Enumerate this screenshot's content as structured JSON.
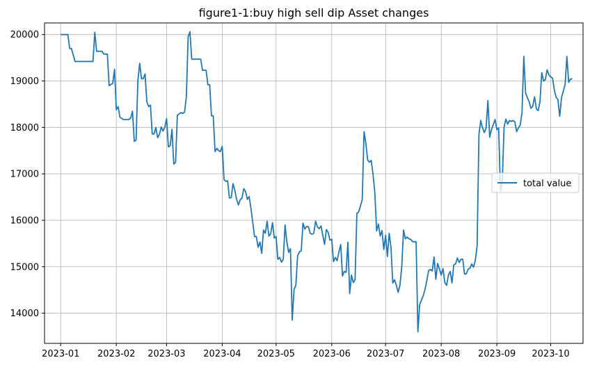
{
  "chart_data": {
    "type": "line",
    "title": "figure1-1:buy high sell dip Asset changes",
    "xlabel": "",
    "ylabel": "",
    "grid": true,
    "legend_position": "center-right",
    "x_tick_labels": [
      "2023-01",
      "2023-02",
      "2023-03",
      "2023-04",
      "2023-05",
      "2023-06",
      "2023-07",
      "2023-08",
      "2023-09",
      "2023-10"
    ],
    "y_tick_labels": [
      "14000",
      "15000",
      "16000",
      "17000",
      "18000",
      "19000",
      "20000"
    ],
    "ylim": [
      13350,
      20250
    ],
    "xlim": [
      "2022-12-23",
      "2023-10-19"
    ],
    "series": [
      {
        "name": "total value",
        "color": "#1f77b4",
        "points": [
          [
            "2023-01-01",
            20000
          ],
          [
            "2023-01-04",
            20000
          ],
          [
            "2023-01-05",
            20000
          ],
          [
            "2023-01-06",
            19700
          ],
          [
            "2023-01-07",
            19700
          ],
          [
            "2023-01-09",
            19420
          ],
          [
            "2023-01-13",
            19420
          ],
          [
            "2023-01-19",
            19420
          ],
          [
            "2023-01-20",
            20050
          ],
          [
            "2023-01-21",
            19640
          ],
          [
            "2023-01-24",
            19640
          ],
          [
            "2023-01-25",
            19580
          ],
          [
            "2023-01-27",
            19580
          ],
          [
            "2023-01-28",
            18900
          ],
          [
            "2023-01-30",
            18950
          ],
          [
            "2023-01-31",
            19250
          ],
          [
            "2023-02-01",
            18380
          ],
          [
            "2023-02-02",
            18450
          ],
          [
            "2023-02-03",
            18220
          ],
          [
            "2023-02-05",
            18170
          ],
          [
            "2023-02-08",
            18170
          ],
          [
            "2023-02-09",
            18200
          ],
          [
            "2023-02-10",
            18350
          ],
          [
            "2023-02-11",
            17700
          ],
          [
            "2023-02-12",
            17730
          ],
          [
            "2023-02-13",
            19000
          ],
          [
            "2023-02-14",
            19380
          ],
          [
            "2023-02-15",
            19050
          ],
          [
            "2023-02-16",
            19050
          ],
          [
            "2023-02-17",
            19150
          ],
          [
            "2023-02-18",
            18550
          ],
          [
            "2023-02-19",
            18450
          ],
          [
            "2023-02-20",
            18480
          ],
          [
            "2023-02-21",
            17860
          ],
          [
            "2023-02-22",
            17860
          ],
          [
            "2023-02-23",
            18000
          ],
          [
            "2023-02-24",
            17780
          ],
          [
            "2023-02-25",
            17850
          ],
          [
            "2023-02-26",
            18010
          ],
          [
            "2023-02-27",
            17920
          ],
          [
            "2023-02-28",
            18000
          ],
          [
            "2023-03-01",
            18190
          ],
          [
            "2023-03-02",
            17580
          ],
          [
            "2023-03-03",
            17610
          ],
          [
            "2023-03-04",
            17960
          ],
          [
            "2023-03-05",
            17210
          ],
          [
            "2023-03-06",
            17250
          ],
          [
            "2023-03-07",
            18260
          ],
          [
            "2023-03-09",
            18320
          ],
          [
            "2023-03-10",
            18300
          ],
          [
            "2023-03-11",
            18330
          ],
          [
            "2023-03-12",
            18650
          ],
          [
            "2023-03-13",
            19950
          ],
          [
            "2023-03-14",
            20060
          ],
          [
            "2023-03-15",
            19470
          ],
          [
            "2023-03-20",
            19470
          ],
          [
            "2023-03-21",
            19230
          ],
          [
            "2023-03-23",
            19230
          ],
          [
            "2023-03-24",
            18920
          ],
          [
            "2023-03-25",
            18920
          ],
          [
            "2023-03-26",
            18250
          ],
          [
            "2023-03-27",
            18250
          ],
          [
            "2023-03-28",
            17480
          ],
          [
            "2023-03-29",
            17550
          ],
          [
            "2023-03-30",
            17500
          ],
          [
            "2023-03-31",
            17480
          ],
          [
            "2023-04-01",
            17590
          ],
          [
            "2023-04-02",
            16880
          ],
          [
            "2023-04-03",
            16840
          ],
          [
            "2023-04-04",
            16850
          ],
          [
            "2023-04-05",
            16480
          ],
          [
            "2023-04-06",
            16490
          ],
          [
            "2023-04-07",
            16790
          ],
          [
            "2023-04-08",
            16650
          ],
          [
            "2023-04-09",
            16450
          ],
          [
            "2023-04-10",
            16330
          ],
          [
            "2023-04-11",
            16440
          ],
          [
            "2023-04-12",
            16480
          ],
          [
            "2023-04-13",
            16680
          ],
          [
            "2023-04-14",
            16620
          ],
          [
            "2023-04-15",
            16450
          ],
          [
            "2023-04-16",
            16510
          ],
          [
            "2023-04-17",
            16260
          ],
          [
            "2023-04-18",
            15950
          ],
          [
            "2023-04-19",
            15650
          ],
          [
            "2023-04-20",
            15650
          ],
          [
            "2023-04-21",
            15420
          ],
          [
            "2023-04-22",
            15530
          ],
          [
            "2023-04-23",
            15290
          ],
          [
            "2023-04-24",
            15790
          ],
          [
            "2023-04-25",
            15720
          ],
          [
            "2023-04-26",
            15980
          ],
          [
            "2023-04-27",
            15660
          ],
          [
            "2023-04-28",
            15710
          ],
          [
            "2023-04-29",
            15950
          ],
          [
            "2023-04-30",
            15620
          ],
          [
            "2023-05-01",
            15650
          ],
          [
            "2023-05-02",
            15160
          ],
          [
            "2023-05-03",
            15200
          ],
          [
            "2023-05-04",
            15100
          ],
          [
            "2023-05-05",
            15160
          ],
          [
            "2023-05-06",
            15900
          ],
          [
            "2023-05-07",
            15530
          ],
          [
            "2023-05-08",
            15310
          ],
          [
            "2023-05-09",
            15390
          ],
          [
            "2023-05-10",
            13850
          ],
          [
            "2023-05-11",
            14510
          ],
          [
            "2023-05-12",
            14600
          ],
          [
            "2023-05-13",
            15240
          ],
          [
            "2023-05-14",
            15320
          ],
          [
            "2023-05-15",
            15340
          ],
          [
            "2023-05-16",
            15940
          ],
          [
            "2023-05-17",
            15810
          ],
          [
            "2023-05-18",
            15870
          ],
          [
            "2023-05-19",
            15860
          ],
          [
            "2023-05-20",
            15720
          ],
          [
            "2023-05-21",
            15700
          ],
          [
            "2023-05-22",
            15720
          ],
          [
            "2023-05-23",
            15980
          ],
          [
            "2023-05-24",
            15860
          ],
          [
            "2023-05-25",
            15820
          ],
          [
            "2023-05-26",
            15880
          ],
          [
            "2023-05-27",
            15680
          ],
          [
            "2023-05-28",
            15480
          ],
          [
            "2023-05-29",
            15800
          ],
          [
            "2023-05-30",
            15740
          ],
          [
            "2023-05-31",
            15570
          ],
          [
            "2023-06-01",
            15590
          ],
          [
            "2023-06-02",
            15110
          ],
          [
            "2023-06-03",
            15200
          ],
          [
            "2023-06-04",
            15130
          ],
          [
            "2023-06-05",
            15320
          ],
          [
            "2023-06-06",
            15480
          ],
          [
            "2023-06-07",
            14800
          ],
          [
            "2023-06-08",
            14900
          ],
          [
            "2023-06-09",
            14880
          ],
          [
            "2023-06-10",
            15530
          ],
          [
            "2023-06-11",
            14420
          ],
          [
            "2023-06-12",
            14820
          ],
          [
            "2023-06-13",
            14660
          ],
          [
            "2023-06-14",
            14720
          ],
          [
            "2023-06-15",
            16150
          ],
          [
            "2023-06-16",
            16180
          ],
          [
            "2023-06-17",
            16310
          ],
          [
            "2023-06-18",
            16450
          ],
          [
            "2023-06-19",
            17910
          ],
          [
            "2023-06-20",
            17660
          ],
          [
            "2023-06-21",
            17300
          ],
          [
            "2023-06-22",
            17250
          ],
          [
            "2023-06-23",
            17290
          ],
          [
            "2023-06-24",
            16990
          ],
          [
            "2023-06-25",
            16600
          ],
          [
            "2023-06-26",
            15770
          ],
          [
            "2023-06-27",
            15920
          ],
          [
            "2023-06-28",
            15660
          ],
          [
            "2023-06-29",
            15780
          ],
          [
            "2023-06-30",
            15370
          ],
          [
            "2023-07-01",
            15680
          ],
          [
            "2023-07-02",
            15220
          ],
          [
            "2023-07-03",
            15720
          ],
          [
            "2023-07-04",
            15420
          ],
          [
            "2023-07-05",
            14650
          ],
          [
            "2023-07-06",
            14720
          ],
          [
            "2023-07-07",
            14600
          ],
          [
            "2023-07-08",
            14450
          ],
          [
            "2023-07-09",
            14600
          ],
          [
            "2023-07-10",
            15000
          ],
          [
            "2023-07-11",
            15790
          ],
          [
            "2023-07-12",
            15600
          ],
          [
            "2023-07-13",
            15640
          ],
          [
            "2023-07-14",
            15600
          ],
          [
            "2023-07-15",
            15590
          ],
          [
            "2023-07-16",
            15540
          ],
          [
            "2023-07-18",
            15540
          ],
          [
            "2023-07-19",
            13600
          ],
          [
            "2023-07-20",
            14190
          ],
          [
            "2023-07-21",
            14280
          ],
          [
            "2023-07-22",
            14380
          ],
          [
            "2023-07-23",
            14520
          ],
          [
            "2023-07-24",
            14710
          ],
          [
            "2023-07-25",
            14920
          ],
          [
            "2023-07-26",
            14940
          ],
          [
            "2023-07-27",
            14910
          ],
          [
            "2023-07-28",
            15210
          ],
          [
            "2023-07-29",
            14730
          ],
          [
            "2023-07-30",
            15070
          ],
          [
            "2023-07-31",
            14950
          ],
          [
            "2023-08-01",
            14820
          ],
          [
            "2023-08-02",
            14960
          ],
          [
            "2023-08-03",
            14660
          ],
          [
            "2023-08-04",
            14600
          ],
          [
            "2023-08-05",
            14820
          ],
          [
            "2023-08-06",
            14900
          ],
          [
            "2023-08-07",
            14650
          ],
          [
            "2023-08-08",
            15040
          ],
          [
            "2023-08-09",
            15060
          ],
          [
            "2023-08-10",
            15190
          ],
          [
            "2023-08-11",
            15090
          ],
          [
            "2023-08-12",
            15160
          ],
          [
            "2023-08-13",
            15160
          ],
          [
            "2023-08-14",
            14840
          ],
          [
            "2023-08-15",
            14850
          ],
          [
            "2023-08-16",
            14950
          ],
          [
            "2023-08-17",
            14970
          ],
          [
            "2023-08-18",
            15060
          ],
          [
            "2023-08-19",
            14990
          ],
          [
            "2023-08-20",
            15140
          ],
          [
            "2023-08-21",
            15450
          ],
          [
            "2023-08-22",
            17840
          ],
          [
            "2023-08-23",
            18150
          ],
          [
            "2023-08-24",
            17990
          ],
          [
            "2023-08-25",
            17890
          ],
          [
            "2023-08-26",
            17990
          ],
          [
            "2023-08-27",
            18580
          ],
          [
            "2023-08-28",
            17790
          ],
          [
            "2023-08-29",
            17960
          ],
          [
            "2023-08-30",
            18060
          ],
          [
            "2023-08-31",
            18170
          ],
          [
            "2023-09-01",
            17950
          ],
          [
            "2023-09-02",
            17990
          ],
          [
            "2023-09-03",
            16630
          ],
          [
            "2023-09-04",
            16820
          ],
          [
            "2023-09-05",
            18000
          ],
          [
            "2023-09-06",
            18180
          ],
          [
            "2023-09-07",
            18070
          ],
          [
            "2023-09-08",
            18150
          ],
          [
            "2023-09-09",
            18130
          ],
          [
            "2023-09-10",
            18150
          ],
          [
            "2023-09-11",
            18120
          ],
          [
            "2023-09-12",
            17910
          ],
          [
            "2023-09-13",
            17990
          ],
          [
            "2023-09-14",
            18050
          ],
          [
            "2023-09-15",
            18320
          ],
          [
            "2023-09-16",
            19530
          ],
          [
            "2023-09-17",
            18740
          ],
          [
            "2023-09-18",
            18640
          ],
          [
            "2023-09-19",
            18550
          ],
          [
            "2023-09-20",
            18410
          ],
          [
            "2023-09-21",
            18460
          ],
          [
            "2023-09-22",
            18660
          ],
          [
            "2023-09-23",
            18400
          ],
          [
            "2023-09-24",
            18360
          ],
          [
            "2023-09-25",
            18550
          ],
          [
            "2023-09-26",
            19180
          ],
          [
            "2023-09-27",
            19000
          ],
          [
            "2023-09-28",
            19030
          ],
          [
            "2023-09-29",
            19240
          ],
          [
            "2023-09-30",
            19130
          ],
          [
            "2023-10-01",
            19090
          ],
          [
            "2023-10-02",
            19060
          ],
          [
            "2023-10-03",
            18810
          ],
          [
            "2023-10-04",
            18650
          ],
          [
            "2023-10-05",
            18600
          ],
          [
            "2023-10-06",
            18240
          ],
          [
            "2023-10-07",
            18640
          ],
          [
            "2023-10-08",
            18780
          ],
          [
            "2023-10-09",
            18920
          ],
          [
            "2023-10-10",
            19530
          ],
          [
            "2023-10-11",
            18970
          ],
          [
            "2023-10-12",
            19040
          ],
          [
            "2023-10-13",
            19050
          ]
        ]
      }
    ]
  }
}
